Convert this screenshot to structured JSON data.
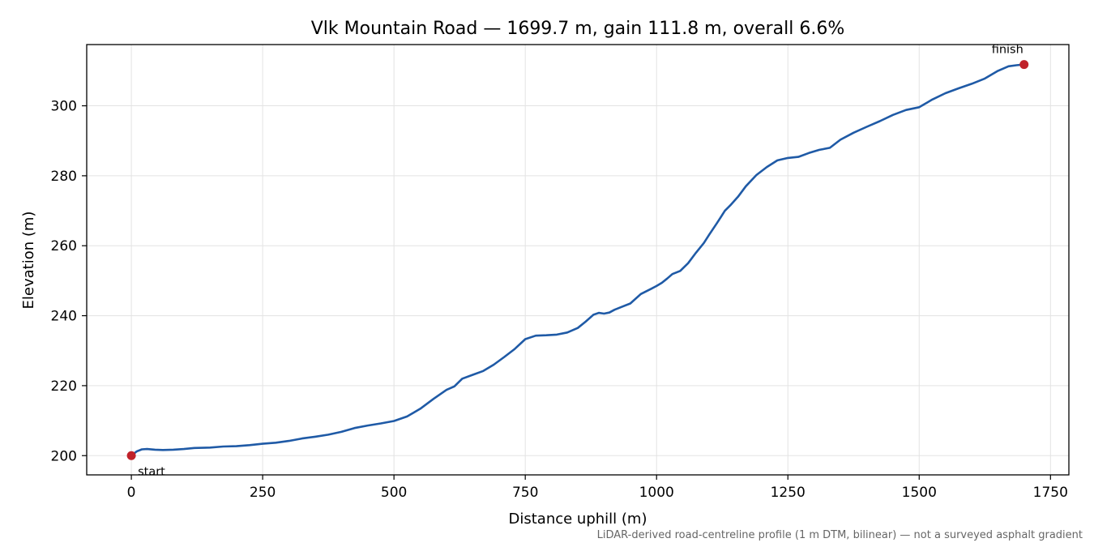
{
  "chart_data": {
    "type": "line",
    "title": "Vlk Mountain Road — 1699.7 m, gain 111.8 m, overall 6.6%",
    "xlabel": "Distance uphill (m)",
    "ylabel": "Elevation (m)",
    "xlim": [
      -85,
      1785
    ],
    "ylim": [
      194.5,
      317.5
    ],
    "xticks": [
      0,
      250,
      500,
      750,
      1000,
      1250,
      1500,
      1750
    ],
    "yticks": [
      200,
      220,
      240,
      260,
      280,
      300
    ],
    "grid": true,
    "series": [
      {
        "color": "#1f5aa6",
        "x": [
          0,
          10,
          20,
          30,
          45,
          60,
          80,
          100,
          120,
          150,
          175,
          200,
          225,
          250,
          275,
          300,
          325,
          350,
          375,
          400,
          425,
          450,
          475,
          500,
          525,
          550,
          575,
          600,
          615,
          630,
          650,
          670,
          690,
          710,
          730,
          750,
          770,
          790,
          810,
          830,
          850,
          865,
          880,
          890,
          900,
          910,
          920,
          935,
          950,
          970,
          990,
          1000,
          1010,
          1020,
          1030,
          1045,
          1060,
          1075,
          1090,
          1100,
          1115,
          1130,
          1140,
          1155,
          1170,
          1190,
          1210,
          1230,
          1250,
          1270,
          1290,
          1310,
          1330,
          1350,
          1375,
          1400,
          1425,
          1450,
          1475,
          1500,
          1525,
          1550,
          1575,
          1600,
          1625,
          1650,
          1670,
          1685,
          1699.7
        ],
        "y": [
          200.0,
          201.2,
          201.8,
          201.9,
          201.7,
          201.6,
          201.7,
          201.9,
          202.2,
          202.3,
          202.6,
          202.7,
          203.0,
          203.4,
          203.7,
          204.2,
          204.9,
          205.4,
          206.0,
          206.8,
          207.9,
          208.6,
          209.2,
          209.9,
          211.2,
          213.4,
          216.2,
          218.8,
          219.8,
          222.0,
          223.1,
          224.2,
          226.0,
          228.2,
          230.5,
          233.3,
          234.3,
          234.4,
          234.6,
          235.2,
          236.5,
          238.3,
          240.3,
          240.8,
          240.6,
          240.9,
          241.7,
          242.6,
          243.5,
          246.2,
          247.7,
          248.5,
          249.4,
          250.6,
          251.9,
          252.8,
          255.0,
          258.0,
          260.8,
          263.1,
          266.5,
          270.0,
          271.5,
          274.0,
          277.0,
          280.2,
          282.5,
          284.4,
          285.1,
          285.4,
          286.5,
          287.4,
          288.0,
          290.3,
          292.3,
          294.0,
          295.6,
          297.4,
          298.8,
          299.6,
          301.8,
          303.6,
          305.0,
          306.3,
          307.8,
          310.0,
          311.3,
          311.6,
          311.8
        ]
      }
    ],
    "markers": [
      {
        "label": "start",
        "x": 0,
        "y": 200.0,
        "color": "#c0222a"
      },
      {
        "label": "finish",
        "x": 1699.7,
        "y": 311.8,
        "color": "#c0222a"
      }
    ]
  },
  "footnote": "LiDAR-derived road-centreline profile (1 m DTM, bilinear) — not a surveyed asphalt gradient"
}
